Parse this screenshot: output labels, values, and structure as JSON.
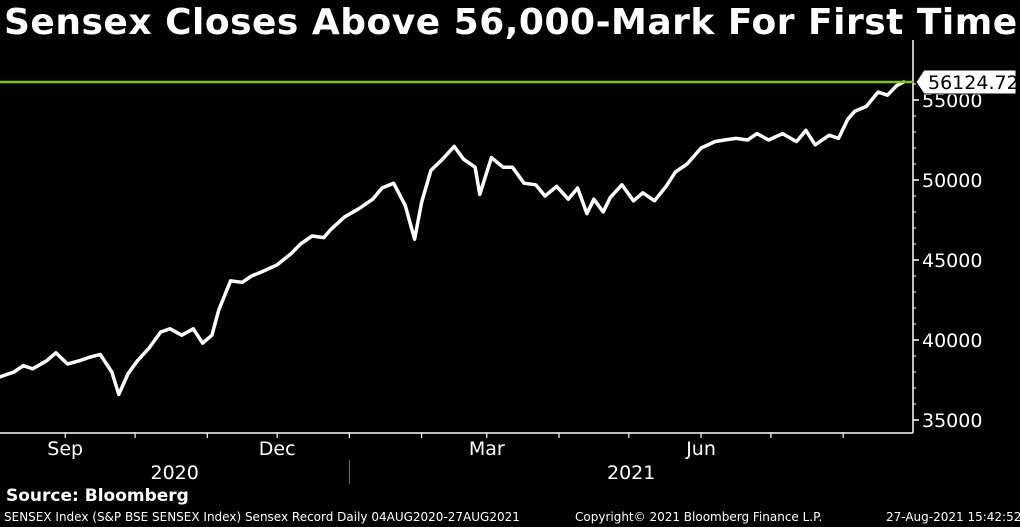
{
  "title": "Sensex Closes Above 56,000-Mark For First Time",
  "source": "Source: Bloomberg",
  "footer": {
    "left": "SENSEX Index (S&P BSE SENSEX Index) Sensex Record  Daily 04AUG2020-27AUG2021",
    "center": "Copyright© 2021 Bloomberg Finance L.P.",
    "right": "27-Aug-2021 15:42:52"
  },
  "colors": {
    "line": "#ffffff",
    "reference": "#7cc324",
    "background": "#000000"
  },
  "chart_data": {
    "type": "line",
    "title": "Sensex Closes Above 56,000-Mark For First Time",
    "xlabel": "",
    "ylabel": "",
    "ylim": [
      34500,
      57000
    ],
    "xlim": [
      "2020-08-04",
      "2021-08-31"
    ],
    "yticks": [
      35000,
      40000,
      45000,
      50000,
      55000
    ],
    "ytick_labels": [
      "35000",
      "40000",
      "45000",
      "50000",
      "55000"
    ],
    "xticks": [
      {
        "date": "2020-09-01",
        "label": "Sep"
      },
      {
        "date": "2020-12-01",
        "label": "Dec"
      },
      {
        "date": "2021-03-01",
        "label": "Mar"
      },
      {
        "date": "2021-06-01",
        "label": "Jun"
      }
    ],
    "year_labels": [
      "2020",
      "2021"
    ],
    "reference_line": {
      "value": 56124.72,
      "label": "56124.72"
    },
    "grid": false,
    "series": [
      {
        "x": [
          "2020-08-04",
          "2020-08-10",
          "2020-08-14",
          "2020-08-18",
          "2020-08-24",
          "2020-08-28",
          "2020-09-02",
          "2020-09-07",
          "2020-09-11",
          "2020-09-16",
          "2020-09-21",
          "2020-09-24",
          "2020-09-28",
          "2020-10-02",
          "2020-10-07",
          "2020-10-12",
          "2020-10-16",
          "2020-10-21",
          "2020-10-26",
          "2020-10-30",
          "2020-11-03",
          "2020-11-06",
          "2020-11-11",
          "2020-11-16",
          "2020-11-20",
          "2020-11-25",
          "2020-12-01",
          "2020-12-07",
          "2020-12-11",
          "2020-12-16",
          "2020-12-21",
          "2020-12-24",
          "2020-12-30",
          "2021-01-05",
          "2021-01-11",
          "2021-01-15",
          "2021-01-20",
          "2021-01-25",
          "2021-01-29",
          "2021-02-01",
          "2021-02-05",
          "2021-02-10",
          "2021-02-15",
          "2021-02-19",
          "2021-02-24",
          "2021-02-26",
          "2021-03-03",
          "2021-03-08",
          "2021-03-12",
          "2021-03-17",
          "2021-03-22",
          "2021-03-26",
          "2021-03-31",
          "2021-04-05",
          "2021-04-09",
          "2021-04-13",
          "2021-04-16",
          "2021-04-20",
          "2021-04-23",
          "2021-04-28",
          "2021-05-03",
          "2021-05-07",
          "2021-05-12",
          "2021-05-17",
          "2021-05-21",
          "2021-05-26",
          "2021-06-01",
          "2021-06-07",
          "2021-06-11",
          "2021-06-16",
          "2021-06-21",
          "2021-06-25",
          "2021-06-30",
          "2021-07-06",
          "2021-07-12",
          "2021-07-16",
          "2021-07-20",
          "2021-07-26",
          "2021-07-30",
          "2021-08-03",
          "2021-08-06",
          "2021-08-11",
          "2021-08-16",
          "2021-08-20",
          "2021-08-24",
          "2021-08-27"
        ],
        "values": [
          37700,
          38000,
          38400,
          38200,
          38700,
          39200,
          38500,
          38700,
          38900,
          39100,
          38000,
          36600,
          37900,
          38700,
          39500,
          40500,
          40700,
          40300,
          40700,
          39800,
          40300,
          41900,
          43700,
          43600,
          44000,
          44300,
          44700,
          45400,
          46000,
          46500,
          46400,
          46900,
          47700,
          48200,
          48800,
          49500,
          49800,
          48400,
          46300,
          48600,
          50600,
          51300,
          52100,
          51300,
          50800,
          49100,
          51400,
          50800,
          50800,
          49800,
          49700,
          49000,
          49600,
          48800,
          49500,
          47900,
          48800,
          48000,
          48900,
          49700,
          48700,
          49200,
          48700,
          49600,
          50500,
          51000,
          52000,
          52400,
          52500,
          52600,
          52500,
          52900,
          52500,
          52900,
          52400,
          53100,
          52200,
          52800,
          52600,
          53800,
          54300,
          54600,
          55500,
          55300,
          55900,
          56124.72
        ]
      }
    ]
  }
}
